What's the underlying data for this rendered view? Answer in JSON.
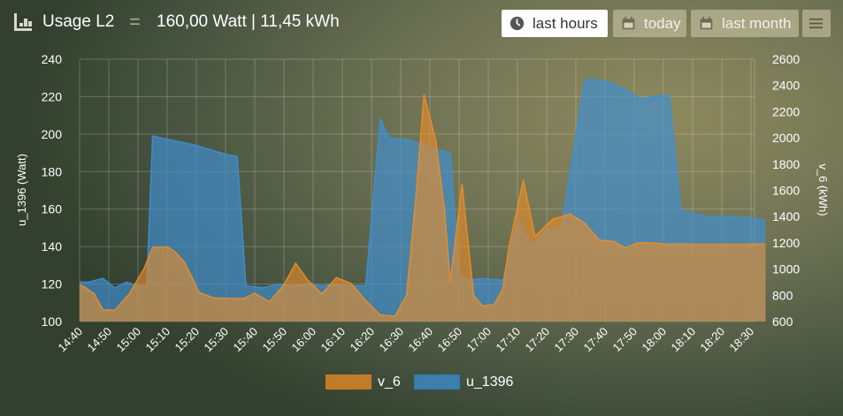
{
  "header": {
    "title": "Usage L2",
    "separator": "=",
    "value": "160,00 Watt | 11,45 kWh",
    "buttons": {
      "last_hours": "last hours",
      "today": "today",
      "last_month": "last month"
    },
    "icons": {
      "chart": "line-chart-icon",
      "clock": "clock-icon",
      "calendar": "calendar-icon",
      "menu": "hamburger-menu-icon"
    }
  },
  "chart_data": {
    "type": "area",
    "x": [
      "14:40",
      "14:50",
      "15:00",
      "15:10",
      "15:20",
      "15:30",
      "15:40",
      "15:50",
      "16:00",
      "16:10",
      "16:20",
      "16:30",
      "16:40",
      "16:50",
      "17:00",
      "17:10",
      "17:20",
      "17:30",
      "17:40",
      "17:50",
      "18:00",
      "18:10",
      "18:20",
      "18:30"
    ],
    "ylabel": "u_1396 (Watt)",
    "y2label": "v_6 (kWh)",
    "ylim": [
      100,
      240
    ],
    "y_ticks": [
      100,
      120,
      140,
      160,
      180,
      200,
      220,
      240
    ],
    "y2lim": [
      600,
      2600
    ],
    "y2_ticks": [
      600,
      800,
      1000,
      1200,
      1400,
      1600,
      1800,
      2000,
      2200,
      2400,
      2600
    ],
    "grid": true,
    "legend_position": "bottom",
    "series": [
      {
        "name": "v_6",
        "axis": "right",
        "color": "#ea8e2a",
        "points": [
          [
            "14:40",
            880
          ],
          [
            "14:42",
            860
          ],
          [
            "14:45",
            810
          ],
          [
            "14:48",
            690
          ],
          [
            "14:52",
            685
          ],
          [
            "14:57",
            810
          ],
          [
            "15:02",
            1000
          ],
          [
            "15:05",
            1165
          ],
          [
            "15:10",
            1170
          ],
          [
            "15:13",
            1125
          ],
          [
            "15:16",
            1050
          ],
          [
            "15:21",
            820
          ],
          [
            "15:26",
            780
          ],
          [
            "15:36",
            775
          ],
          [
            "15:40",
            815
          ],
          [
            "15:45",
            750
          ],
          [
            "15:50",
            880
          ],
          [
            "15:54",
            1045
          ],
          [
            "15:58",
            920
          ],
          [
            "16:03",
            810
          ],
          [
            "16:08",
            935
          ],
          [
            "16:13",
            890
          ],
          [
            "16:18",
            760
          ],
          [
            "16:23",
            650
          ],
          [
            "16:28",
            640
          ],
          [
            "16:32",
            800
          ],
          [
            "16:35",
            1500
          ],
          [
            "16:38",
            2330
          ],
          [
            "16:42",
            1980
          ],
          [
            "16:45",
            1450
          ],
          [
            "16:47",
            900
          ],
          [
            "16:51",
            1650
          ],
          [
            "16:55",
            800
          ],
          [
            "16:58",
            720
          ],
          [
            "17:02",
            730
          ],
          [
            "17:05",
            850
          ],
          [
            "17:07",
            1160
          ],
          [
            "17:12",
            1680
          ],
          [
            "17:16",
            1250
          ],
          [
            "17:22",
            1380
          ],
          [
            "17:28",
            1420
          ],
          [
            "17:33",
            1350
          ],
          [
            "17:38",
            1220
          ],
          [
            "17:43",
            1210
          ],
          [
            "17:47",
            1160
          ],
          [
            "17:51",
            1200
          ],
          [
            "17:56",
            1200
          ],
          [
            "18:01",
            1190
          ],
          [
            "18:35",
            1190
          ]
        ]
      },
      {
        "name": "u_1396",
        "axis": "left",
        "color": "#3f8fd2",
        "points": [
          [
            "14:40",
            121
          ],
          [
            "14:43",
            121
          ],
          [
            "14:48",
            123
          ],
          [
            "14:52",
            118
          ],
          [
            "14:56",
            121
          ],
          [
            "15:00",
            119
          ],
          [
            "15:03",
            119
          ],
          [
            "15:05",
            199
          ],
          [
            "15:20",
            194
          ],
          [
            "15:26",
            191
          ],
          [
            "15:31",
            189
          ],
          [
            "15:34",
            188
          ],
          [
            "15:37",
            119
          ],
          [
            "15:43",
            118
          ],
          [
            "15:48",
            120
          ],
          [
            "15:53",
            119
          ],
          [
            "15:58",
            120
          ],
          [
            "16:03",
            119
          ],
          [
            "16:08",
            120
          ],
          [
            "16:13",
            119
          ],
          [
            "16:18",
            119
          ],
          [
            "16:23",
            208
          ],
          [
            "16:26",
            198
          ],
          [
            "16:33",
            197
          ],
          [
            "16:38",
            194
          ],
          [
            "16:42",
            192
          ],
          [
            "16:47",
            190
          ],
          [
            "16:50",
            125
          ],
          [
            "16:53",
            122
          ],
          [
            "16:58",
            123
          ],
          [
            "17:05",
            122
          ],
          [
            "17:10",
            154
          ],
          [
            "17:15",
            140
          ],
          [
            "17:20",
            149
          ],
          [
            "17:25",
            150
          ],
          [
            "17:33",
            229
          ],
          [
            "17:38",
            229
          ],
          [
            "17:43",
            227
          ],
          [
            "17:48",
            223
          ],
          [
            "17:52",
            219
          ],
          [
            "17:57",
            220
          ],
          [
            "18:02",
            221
          ],
          [
            "18:06",
            159
          ],
          [
            "18:10",
            158
          ],
          [
            "18:15",
            156
          ],
          [
            "18:24",
            156
          ],
          [
            "18:31",
            155
          ],
          [
            "18:35",
            154
          ]
        ]
      }
    ]
  }
}
